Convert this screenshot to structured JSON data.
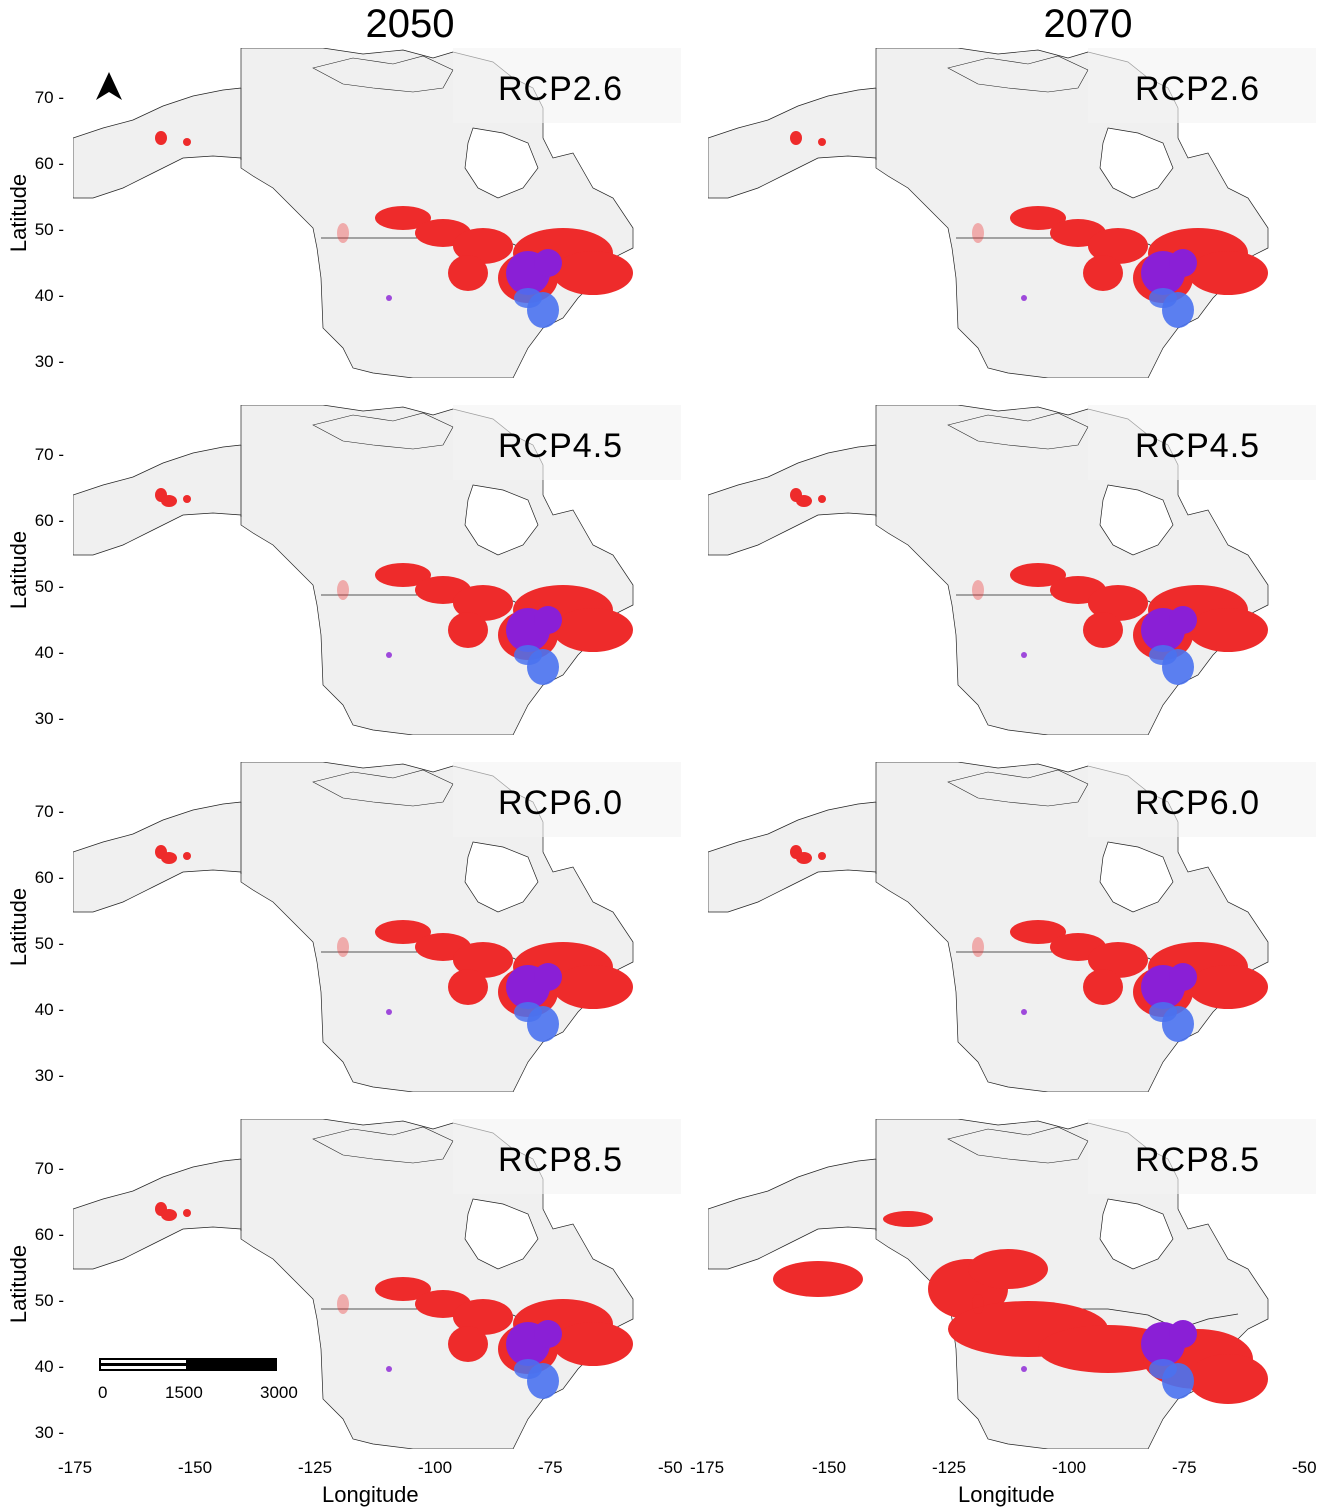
{
  "columns": [
    "2050",
    "2070"
  ],
  "scenarios": [
    "RCP2.6",
    "RCP4.5",
    "RCP6.0",
    "RCP8.5"
  ],
  "axes": {
    "y_label": "Latitude",
    "x_label": "Longitude",
    "lat_ticks": [
      "70",
      "60",
      "50",
      "40",
      "30"
    ],
    "lon_ticks_left": [
      "-175",
      "-150",
      "-125",
      "-100",
      "-75",
      "-50"
    ],
    "lon_ticks_right": [
      "-175",
      "-150",
      "-125",
      "-100",
      "-75",
      "-50"
    ]
  },
  "scale_bar": {
    "labels": [
      "0",
      "1500",
      "3000"
    ]
  },
  "colors": {
    "land": "#f0f0f0",
    "red": "#ee2b2b",
    "purple": "#8a1fd6",
    "blue": "#4a72f0",
    "border": "#222222"
  },
  "north_arrow": "north-arrow-icon"
}
